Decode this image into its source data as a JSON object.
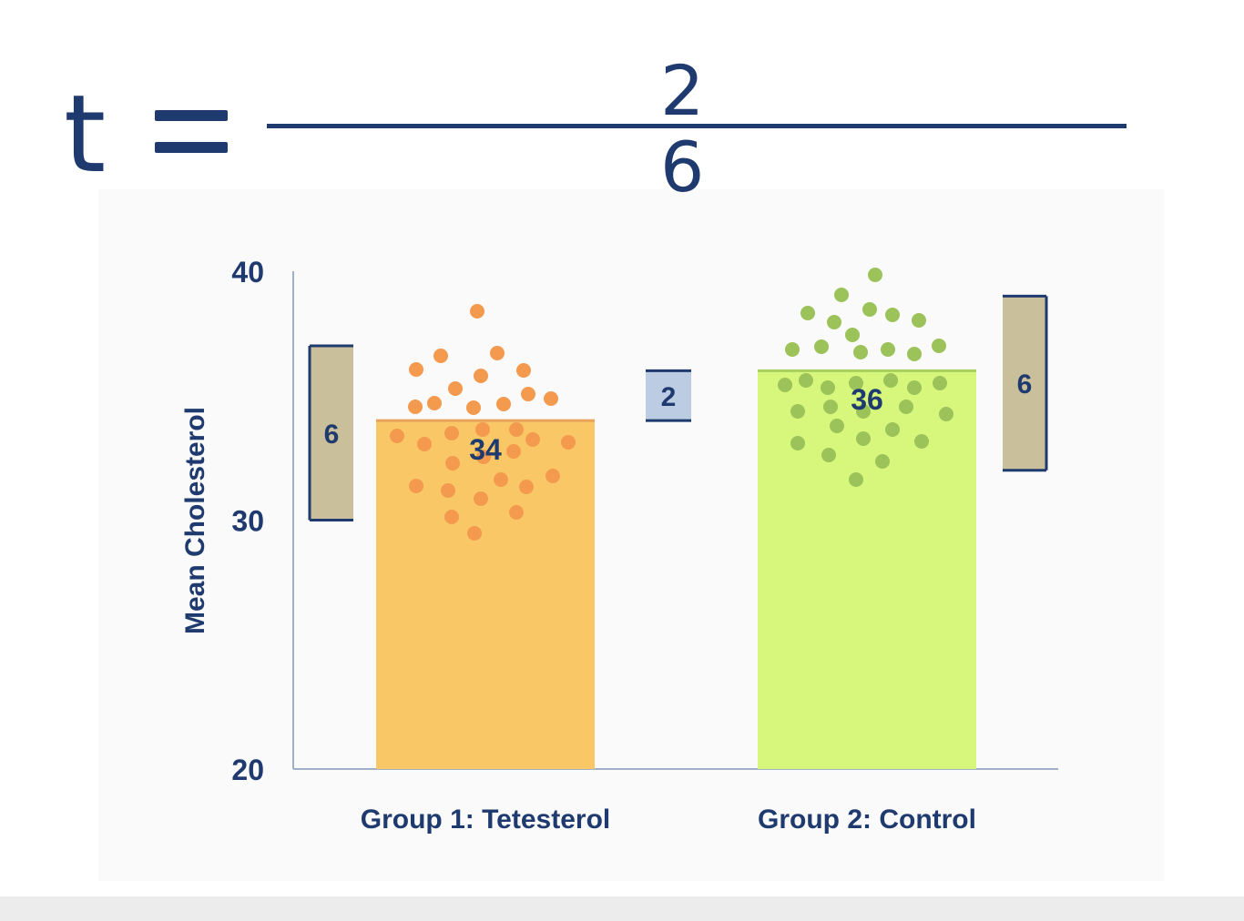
{
  "formula": {
    "lhs": "t",
    "numerator": "2",
    "denominator": "6"
  },
  "chart_data": {
    "type": "bar",
    "ylabel": "Mean Cholesterol",
    "ylim": [
      20,
      40
    ],
    "yticks": [
      "40",
      "30",
      "20"
    ],
    "categories": [
      "Group 1: Tetesterol",
      "Group 2: Control"
    ],
    "values": [
      34,
      36
    ],
    "data_labels": [
      "34",
      "36"
    ],
    "colors": [
      "#fac766",
      "#d6f77c"
    ],
    "dot_colors": [
      "#f39a4f",
      "#9cc25a"
    ],
    "annotations": [
      {
        "name": "group1-spread",
        "label": "6",
        "from": 30,
        "to": 37
      },
      {
        "name": "mean-difference",
        "label": "2",
        "from": 34,
        "to": 36
      },
      {
        "name": "group2-spread",
        "label": "6",
        "from": 32,
        "to": 39
      }
    ],
    "grid": false
  }
}
